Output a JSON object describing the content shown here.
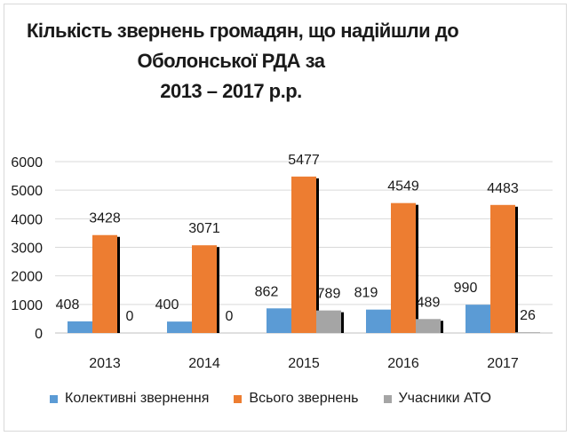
{
  "chart_data": {
    "type": "bar",
    "title_lines": [
      "Кількість звернень громадян, що надійшли до",
      "Оболонської РДА за",
      "2013 – 2017 р.р."
    ],
    "categories": [
      "2013",
      "2014",
      "2015",
      "2016",
      "2017"
    ],
    "series": [
      {
        "name": "Колективні звернення",
        "values": [
          408,
          400,
          862,
          819,
          990
        ],
        "color": "#5b9bd5"
      },
      {
        "name": "Всього звернень",
        "values": [
          3428,
          3071,
          5477,
          4549,
          4483
        ],
        "color": "#ed7d31"
      },
      {
        "name": "Учасники АТО",
        "values": [
          0,
          0,
          789,
          489,
          26
        ],
        "color": "#a5a5a5"
      }
    ],
    "y_ticks": [
      "0",
      "1000",
      "2000",
      "3000",
      "4000",
      "5000",
      "6000"
    ],
    "ylim": [
      0,
      6000
    ],
    "grid": true,
    "legend_position": "bottom"
  }
}
